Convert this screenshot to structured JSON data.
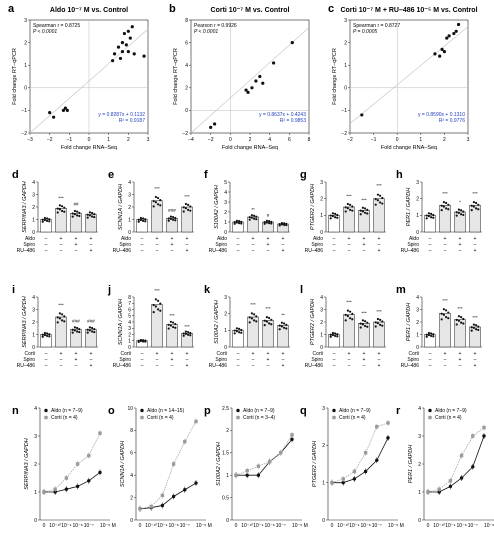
{
  "figure": {
    "panels": {
      "a": {
        "letter": "a",
        "title": "Aldo 10⁻⁷ M vs. Control",
        "stat": "Spearman r = 0.8725",
        "p": "P < 0.0001",
        "eq": "y = 0.8287x + 0.1132",
        "r2": "R² = 0.9187",
        "xlabel": "Fold change RNA–Seq",
        "ylabel": "Fold change RT–qPCR",
        "xticks": [
          "−3",
          "−2",
          "−1",
          "0",
          "1",
          "2",
          "3"
        ],
        "yticks": [
          "−2",
          "−1",
          "0",
          "1",
          "2",
          "3"
        ]
      },
      "b": {
        "letter": "b",
        "title": "Corti 10⁻⁷ M vs. Control",
        "stat": "Pearson r = 0.9926",
        "p": "P < 0.0001",
        "eq": "y = 0.8637x + 0.4243",
        "r2": "R² = 0.9853",
        "xlabel": "Fold change RNA–Seq",
        "ylabel": "Fold change RT–qPCR",
        "xticks": [
          "−4",
          "−2",
          "0",
          "2",
          "4",
          "6",
          "8"
        ],
        "yticks": [
          "−2",
          "0",
          "2",
          "4",
          "6",
          "8"
        ]
      },
      "c": {
        "letter": "c",
        "title": "Corti 10⁻⁷ M + RU–486 10⁻⁵ M vs. Control",
        "stat": "Spearman r = 0.8727",
        "p": "P = 0.0005",
        "eq": "y = 0.8590x + 0.1310",
        "r2": "R² = 0.9776",
        "xlabel": "Fold change RNA–Seq",
        "ylabel": "Fold change RT–qPCR",
        "xticks": [
          "−2",
          "−1",
          "0",
          "1",
          "2",
          "3"
        ],
        "yticks": [
          "−2",
          "−1",
          "0",
          "1",
          "2",
          "3"
        ]
      }
    },
    "bar_rows": {
      "row1": {
        "factors": [
          "Aldo",
          "Spiro",
          "RU–486"
        ],
        "signs": [
          [
            "–",
            "+",
            "+",
            "+"
          ],
          [
            "–",
            "–",
            "+",
            "–"
          ],
          [
            "–",
            "–",
            "–",
            "+"
          ]
        ],
        "letters": [
          "d",
          "e",
          "f",
          "g",
          "h"
        ]
      },
      "row2": {
        "factors": [
          "Corti",
          "Spiro",
          "RU–486"
        ],
        "signs": [
          [
            "–",
            "+",
            "+",
            "+"
          ],
          [
            "–",
            "–",
            "+",
            "–"
          ],
          [
            "–",
            "–",
            "–",
            "+"
          ]
        ],
        "letters": [
          "i",
          "j",
          "k",
          "l",
          "m"
        ]
      }
    },
    "genes": [
      "SERPINA3",
      "SCNN1A",
      "S100A2",
      "PTGER2",
      "PER1"
    ],
    "ylabel_suffix": " / GAPDH",
    "dose": {
      "letters": [
        "n",
        "o",
        "p",
        "q",
        "r"
      ],
      "xticks": [
        "0",
        "10⁻¹⁰",
        "10⁻⁹",
        "10⁻⁸",
        "10⁻⁷",
        "10⁻⁶ M"
      ],
      "legend": [
        [
          "Aldo (n = 7–9)",
          "Corti (n = 4)"
        ],
        [
          "Aldo (n = 14–15)",
          "Corti (n = 4)"
        ],
        [
          "Aldo (n = 7–9)",
          "Corti (n = 3–4)"
        ],
        [
          "Aldo (n = 7–9)",
          "Corti (n = 4)"
        ],
        [
          "Aldo (n = 7–9)",
          "Corti (n = 4)"
        ]
      ]
    }
  },
  "chart_data": [
    {
      "type": "scatter",
      "panel": "a",
      "title": "Aldo 10^-7 M vs. Control",
      "xlabel": "Fold change RNA–Seq",
      "ylabel": "Fold change RT–qPCR",
      "xlim": [
        -3,
        3
      ],
      "ylim": [
        -2,
        3
      ],
      "points": [
        [
          -2.0,
          -1.1
        ],
        [
          -1.8,
          -1.3
        ],
        [
          -1.3,
          -1.0
        ],
        [
          -1.2,
          -0.9
        ],
        [
          -1.1,
          -1.0
        ],
        [
          1.2,
          1.2
        ],
        [
          1.3,
          1.5
        ],
        [
          1.5,
          1.8
        ],
        [
          1.6,
          1.3
        ],
        [
          1.7,
          1.6
        ],
        [
          1.7,
          2.0
        ],
        [
          1.8,
          2.4
        ],
        [
          1.9,
          1.9
        ],
        [
          2.0,
          1.6
        ],
        [
          2.0,
          2.5
        ],
        [
          2.1,
          2.2
        ],
        [
          2.2,
          2.7
        ],
        [
          2.3,
          1.5
        ],
        [
          2.8,
          1.4
        ]
      ],
      "fit": {
        "slope": 0.8287,
        "intercept": 0.1132
      }
    },
    {
      "type": "scatter",
      "panel": "b",
      "title": "Corti 10^-7 M vs. Control",
      "xlabel": "Fold change RNA–Seq",
      "ylabel": "Fold change RT–qPCR",
      "xlim": [
        -4,
        8
      ],
      "ylim": [
        -2,
        8
      ],
      "points": [
        [
          -2.0,
          -1.5
        ],
        [
          -1.6,
          -1.2
        ],
        [
          1.6,
          1.8
        ],
        [
          1.8,
          1.6
        ],
        [
          2.2,
          2.0
        ],
        [
          2.6,
          2.6
        ],
        [
          3.0,
          3.0
        ],
        [
          3.3,
          2.4
        ],
        [
          4.4,
          4.2
        ],
        [
          6.3,
          6.0
        ]
      ],
      "fit": {
        "slope": 0.8637,
        "intercept": 0.4243
      }
    },
    {
      "type": "scatter",
      "panel": "c",
      "title": "Corti 10^-7 M + RU-486 10^-5 M vs. Control",
      "xlabel": "Fold change RNA–Seq",
      "ylabel": "Fold change RT–qPCR",
      "xlim": [
        -2,
        3
      ],
      "ylim": [
        -2,
        3
      ],
      "points": [
        [
          -1.5,
          -1.2
        ],
        [
          1.6,
          1.5
        ],
        [
          1.8,
          1.4
        ],
        [
          1.9,
          1.7
        ],
        [
          2.0,
          1.6
        ],
        [
          2.1,
          2.2
        ],
        [
          2.2,
          2.3
        ],
        [
          2.4,
          2.4
        ],
        [
          2.5,
          2.5
        ],
        [
          2.6,
          2.8
        ]
      ],
      "fit": {
        "slope": 0.859,
        "intercept": 0.131
      }
    },
    {
      "type": "bar",
      "panel": "d",
      "gene": "SERPINA3",
      "ylim": [
        0,
        4
      ],
      "values": [
        1.0,
        1.9,
        1.5,
        1.4
      ],
      "sig": [
        "",
        "***",
        "##",
        ""
      ]
    },
    {
      "type": "bar",
      "panel": "e",
      "gene": "SCNN1A",
      "ylim": [
        0,
        4
      ],
      "values": [
        1.0,
        2.5,
        1.1,
        2.0
      ],
      "sig": [
        "",
        "***",
        "###",
        "***"
      ]
    },
    {
      "type": "bar",
      "panel": "f",
      "gene": "S100A2",
      "ylim": [
        0,
        5
      ],
      "values": [
        1.0,
        1.5,
        1.0,
        0.8
      ],
      "sig": [
        "",
        "**",
        "#",
        ""
      ]
    },
    {
      "type": "bar",
      "panel": "g",
      "gene": "PTGER2",
      "ylim": [
        0,
        3
      ],
      "values": [
        1.0,
        1.5,
        1.3,
        2.0
      ],
      "sig": [
        "",
        "***",
        "***",
        "***"
      ]
    },
    {
      "type": "bar",
      "panel": "h",
      "gene": "PER1",
      "ylim": [
        0,
        3
      ],
      "values": [
        1.0,
        1.6,
        1.2,
        1.6
      ],
      "sig": [
        "",
        "***",
        "*",
        "***"
      ]
    },
    {
      "type": "bar",
      "panel": "i",
      "gene": "SERPINA3",
      "ylim": [
        0,
        4
      ],
      "values": [
        1.0,
        2.4,
        1.4,
        1.4
      ],
      "sig": [
        "",
        "***",
        "###",
        "###"
      ]
    },
    {
      "type": "bar",
      "panel": "j",
      "gene": "SCNN1A",
      "ylim": [
        0,
        8
      ],
      "values": [
        1.0,
        6.8,
        3.6,
        2.2
      ],
      "sig": [
        "",
        "***",
        "***",
        "***"
      ]
    },
    {
      "type": "bar",
      "panel": "k",
      "gene": "S100A2",
      "ylim": [
        0,
        3
      ],
      "values": [
        1.0,
        1.8,
        1.6,
        1.3
      ],
      "sig": [
        "",
        "***",
        "***",
        "**"
      ]
    },
    {
      "type": "bar",
      "panel": "l",
      "gene": "PTGER2",
      "ylim": [
        0,
        4
      ],
      "values": [
        1.0,
        2.6,
        1.9,
        2.0
      ],
      "sig": [
        "",
        "***",
        "***",
        "***"
      ]
    },
    {
      "type": "bar",
      "panel": "m",
      "gene": "PER1",
      "ylim": [
        0,
        4
      ],
      "values": [
        1.0,
        2.7,
        2.2,
        1.6
      ],
      "sig": [
        "",
        "***",
        "***",
        "***"
      ]
    },
    {
      "type": "line",
      "panel": "n",
      "gene": "SERPINA3",
      "ylim": [
        0,
        4
      ],
      "x": [
        "0",
        "10^-10",
        "10^-9",
        "10^-8",
        "10^-7",
        "10^-6"
      ],
      "series": [
        {
          "name": "Aldo (n = 7–9)",
          "values": [
            1.0,
            1.0,
            1.1,
            1.2,
            1.4,
            1.7
          ]
        },
        {
          "name": "Corti (n = 4)",
          "values": [
            1.0,
            1.1,
            1.5,
            2.0,
            2.3,
            3.1
          ]
        }
      ]
    },
    {
      "type": "line",
      "panel": "o",
      "gene": "SCNN1A",
      "ylim": [
        0,
        10
      ],
      "x": [
        "0",
        "10^-10",
        "10^-9",
        "10^-8",
        "10^-7",
        "10^-6"
      ],
      "series": [
        {
          "name": "Aldo (n = 14–15)",
          "values": [
            1.0,
            1.1,
            1.3,
            2.1,
            2.7,
            3.3
          ]
        },
        {
          "name": "Corti (n = 4)",
          "values": [
            1.0,
            1.2,
            2.2,
            5.0,
            7.0,
            8.8
          ]
        }
      ]
    },
    {
      "type": "line",
      "panel": "p",
      "gene": "S100A2",
      "ylim": [
        0,
        2.5
      ],
      "x": [
        "0",
        "10^-10",
        "10^-9",
        "10^-8",
        "10^-7",
        "10^-6"
      ],
      "series": [
        {
          "name": "Aldo (n = 7–9)",
          "values": [
            1.0,
            1.0,
            1.0,
            1.3,
            1.5,
            1.8
          ]
        },
        {
          "name": "Corti (n = 3–4)",
          "values": [
            1.0,
            1.1,
            1.2,
            1.3,
            1.5,
            1.9
          ]
        }
      ]
    },
    {
      "type": "line",
      "panel": "q",
      "gene": "PTGER2",
      "ylim": [
        0,
        3
      ],
      "x": [
        "0",
        "10^-10",
        "10^-9",
        "10^-8",
        "10^-7",
        "10^-6"
      ],
      "series": [
        {
          "name": "Aldo (n = 7–9)",
          "values": [
            1.0,
            1.0,
            1.1,
            1.3,
            1.6,
            2.2
          ]
        },
        {
          "name": "Corti (n = 4)",
          "values": [
            1.0,
            1.1,
            1.3,
            1.8,
            2.5,
            2.6
          ]
        }
      ]
    },
    {
      "type": "line",
      "panel": "r",
      "gene": "PER1",
      "ylim": [
        0,
        4
      ],
      "x": [
        "0",
        "10^-10",
        "10^-9",
        "10^-8",
        "10^-7",
        "10^-6"
      ],
      "series": [
        {
          "name": "Aldo (n = 7–9)",
          "values": [
            1.0,
            1.0,
            1.2,
            1.5,
            1.9,
            3.0
          ]
        },
        {
          "name": "Corti (n = 4)",
          "values": [
            1.0,
            1.1,
            1.4,
            2.3,
            3.0,
            3.3
          ]
        }
      ]
    }
  ]
}
